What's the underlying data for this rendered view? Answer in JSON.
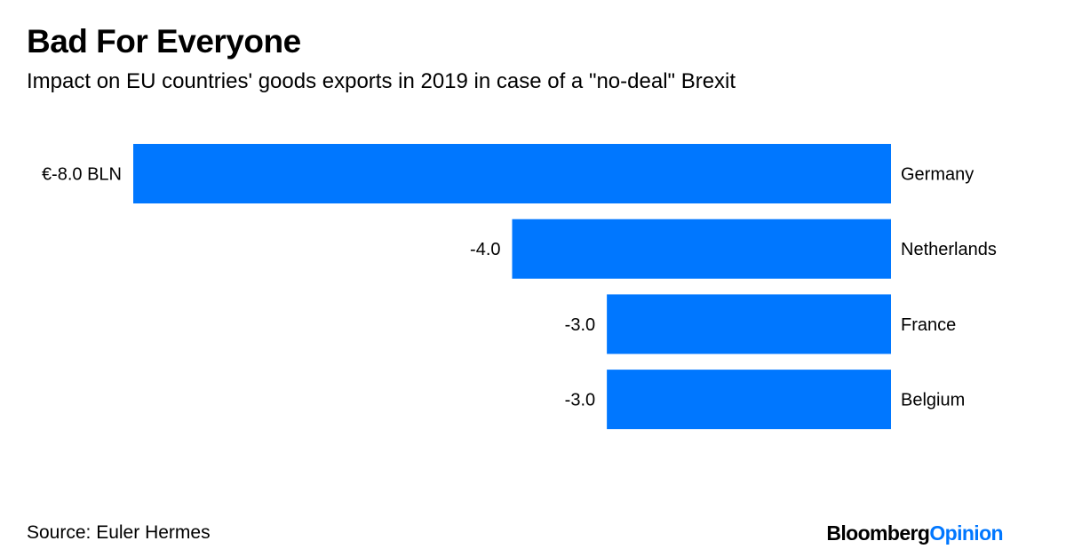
{
  "header": {
    "title": "Bad For Everyone",
    "subtitle": "Impact on EU countries' goods exports in 2019 in case of a \"no-deal\" Brexit"
  },
  "footer": {
    "source": "Source: Euler Hermes",
    "brand_part1": "Bloomberg",
    "brand_part2": "Opinion"
  },
  "colors": {
    "bar": "#0077ff",
    "brand_accent": "#0077ff",
    "text": "#000000"
  },
  "chart_data": {
    "type": "bar",
    "orientation": "horizontal",
    "title": "Bad For Everyone",
    "subtitle": "Impact on EU countries' goods exports in 2019 in case of a \"no-deal\" Brexit",
    "categories": [
      "Germany",
      "Netherlands",
      "France",
      "Belgium"
    ],
    "values": [
      -8.0,
      -4.0,
      -3.0,
      -3.0
    ],
    "value_labels": [
      "€-8.0 BLN",
      "-4.0",
      "-3.0",
      "-3.0"
    ],
    "unit": "€ BLN",
    "xlim": [
      -8.0,
      0
    ],
    "xlabel": "",
    "ylabel": "",
    "grid": false,
    "legend": "none"
  }
}
